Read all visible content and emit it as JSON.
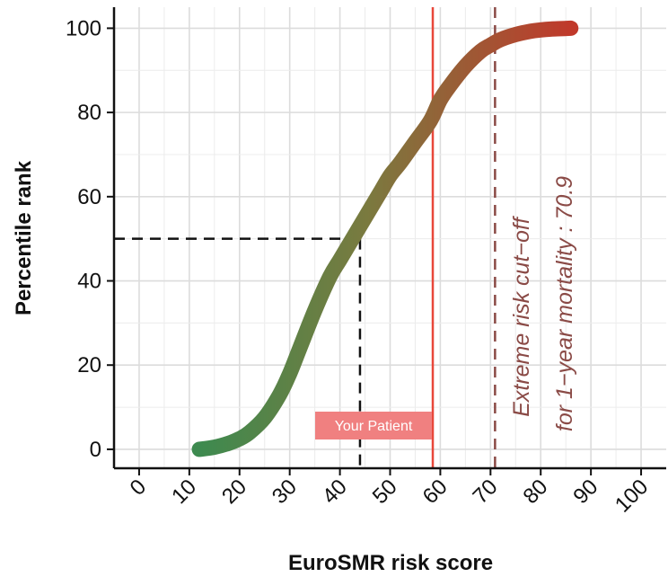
{
  "chart_data": {
    "type": "line",
    "title": "",
    "xlabel": "EuroSMR risk score",
    "ylabel": "Percentile rank",
    "xlim": [
      -5,
      105
    ],
    "ylim": [
      -4.5,
      105
    ],
    "x_ticks": [
      0,
      10,
      20,
      30,
      40,
      50,
      60,
      70,
      80,
      90,
      100
    ],
    "y_ticks": [
      0,
      20,
      40,
      60,
      80,
      100
    ],
    "grid": true,
    "series": [
      {
        "x": [
          12,
          15,
          18,
          20,
          22,
          25,
          28,
          30,
          32,
          35,
          38,
          40,
          42,
          44,
          46,
          48,
          50,
          52,
          55,
          58,
          60,
          62,
          65,
          68,
          70,
          72,
          75,
          78,
          80,
          82,
          84,
          86
        ],
        "y": [
          0,
          0.5,
          1.5,
          2.5,
          4,
          7.5,
          13,
          18,
          24,
          33,
          41,
          45,
          49,
          53,
          57,
          61,
          65,
          68,
          73,
          78,
          83,
          86.5,
          91,
          94.5,
          96,
          97.3,
          98.5,
          99.3,
          99.6,
          99.8,
          99.9,
          100
        ],
        "color_start": "#3d8a4f",
        "color_end": "#c0392b"
      }
    ],
    "reference_lines": [
      {
        "orientation": "vertical",
        "x": 44,
        "y_top": 50,
        "style": "dashed",
        "color": "#111111"
      },
      {
        "orientation": "horizontal",
        "y": 50,
        "x_right": 44,
        "style": "dashed",
        "color": "#111111"
      },
      {
        "orientation": "vertical",
        "x": 58.5,
        "style": "solid",
        "color": "#e8473a"
      },
      {
        "orientation": "vertical",
        "x": 70.9,
        "style": "dashed",
        "color": "#8a4a46"
      }
    ],
    "annotations": {
      "patient_label": "Your Patient",
      "patient_label_color": "#f08080",
      "cutoff_line1": "Extreme risk cut−off",
      "cutoff_line2": "for 1−year mortality : 70.9",
      "cutoff_color": "#8a4a46"
    }
  }
}
